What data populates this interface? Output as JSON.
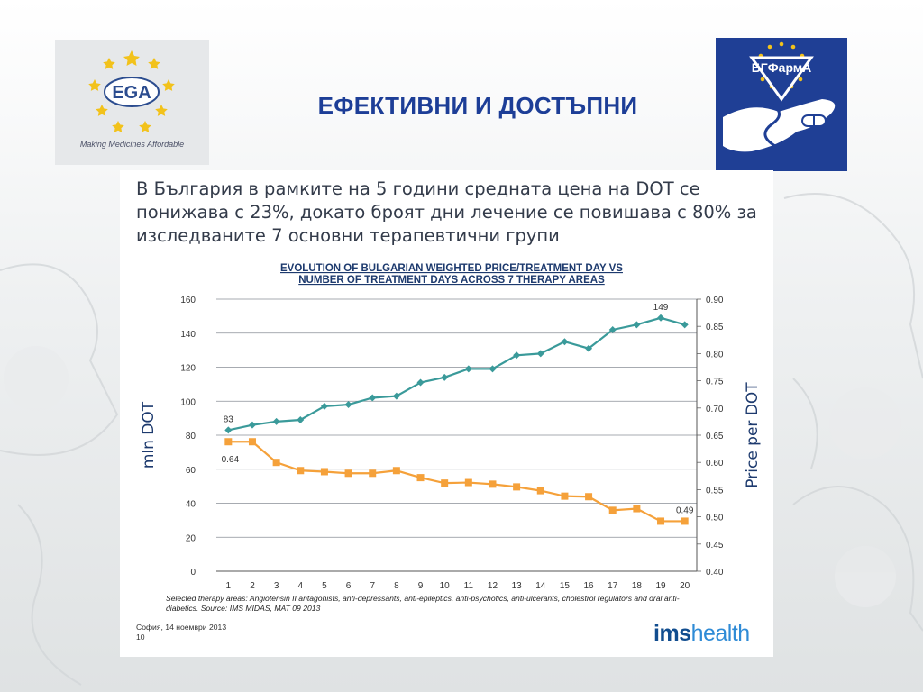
{
  "slide": {
    "title": "ЕФЕКТИВНИ И ДОСТЪПНИ",
    "left_logo": {
      "name": "EGA",
      "tagline": "Making Medicines Affordable"
    },
    "right_logo": {
      "name": "БГФармА"
    },
    "body_text": "В България в рамките на 5 години средната цена на DOT се понижава с 23%, докато броят дни лечение се повишава с 80% за изследваните 7 основни терапевтични групи",
    "footnote": "Selected therapy areas: Angiotensin II antagonists, anti-depressants, anti-epileptics, anti-psychotics, anti-ulcerants, cholestrol regulators and oral anti-diabetics. Source: IMS MIDAS, MAT 09 2013",
    "footer_date": "София, 14 ноември 2013",
    "page_number": "10",
    "source_logo": {
      "bold": "ims",
      "light": "health"
    },
    "colors": {
      "title": "#1d3e97",
      "dot_series": "#3a9a9a",
      "price_series": "#f5a13a",
      "axis_label": "#1d3a6e"
    }
  },
  "chart_data": {
    "type": "line",
    "title": "EVOLUTION OF BULGARIAN WEIGHTED PRICE/TREATMENT DAY VS NUMBER OF TREATMENT DAYS ACROSS 7 THERAPY AREAS",
    "title_lines": [
      "EVOLUTION OF BULGARIAN WEIGHTED PRICE/TREATMENT DAY VS",
      "NUMBER OF TREATMENT DAYS ACROSS 7 THERAPY AREAS"
    ],
    "x": [
      1,
      2,
      3,
      4,
      5,
      6,
      7,
      8,
      9,
      10,
      11,
      12,
      13,
      14,
      15,
      16,
      17,
      18,
      19,
      20
    ],
    "xlabel": "",
    "ylabel_left": "mln DOT",
    "ylabel_right": "Price per DOT",
    "ylim_left": [
      0,
      160
    ],
    "ylim_right": [
      0.4,
      0.9
    ],
    "left_ticks": [
      "0",
      "20",
      "40",
      "60",
      "80",
      "100",
      "120",
      "140",
      "160"
    ],
    "right_ticks": [
      "0.40",
      "0.45",
      "0.50",
      "0.55",
      "0.60",
      "0.65",
      "0.70",
      "0.75",
      "0.80",
      "0.85",
      "0.90"
    ],
    "grid": true,
    "legend": "none",
    "series": [
      {
        "axis": "left",
        "marker": "diamond",
        "values": [
          83,
          86,
          88,
          89,
          97,
          98,
          102,
          103,
          111,
          114,
          119,
          119,
          127,
          128,
          135,
          131,
          142,
          145,
          149,
          145
        ],
        "data_labels": [
          {
            "index": 0,
            "text": "83"
          },
          {
            "index": 18,
            "text": "149"
          }
        ]
      },
      {
        "axis": "right",
        "marker": "square",
        "values": [
          0.638,
          0.638,
          0.6,
          0.585,
          0.583,
          0.58,
          0.58,
          0.585,
          0.572,
          0.562,
          0.563,
          0.56,
          0.555,
          0.548,
          0.538,
          0.537,
          0.512,
          0.515,
          0.492,
          0.492
        ],
        "data_labels": [
          {
            "index": 0,
            "text": "0.64"
          },
          {
            "index": 19,
            "text": "0.49"
          }
        ]
      }
    ]
  }
}
